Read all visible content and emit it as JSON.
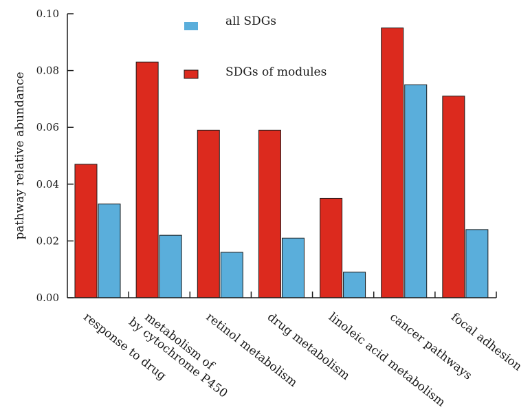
{
  "chart_data": {
    "type": "bar",
    "title": "",
    "xlabel": "",
    "ylabel": "pathway relative abundance",
    "ylim": [
      0,
      0.1
    ],
    "yticks": [
      "0.00",
      "0.02",
      "0.04",
      "0.06",
      "0.08",
      "0.10"
    ],
    "grid": false,
    "legend_position": "top-center",
    "categories": [
      [
        "response to drug"
      ],
      [
        "metabolism of",
        "by cytochrome P450"
      ],
      [
        "retinol metabolism"
      ],
      [
        "drug metabolism"
      ],
      [
        "linoleic acid metabolism"
      ],
      [
        "cancer pathways"
      ],
      [
        "focal adhesion"
      ]
    ],
    "series": [
      {
        "name": "SDGs of modules",
        "color": "#dc2a1e",
        "values": [
          0.047,
          0.083,
          0.059,
          0.059,
          0.035,
          0.095,
          0.071
        ]
      },
      {
        "name": "all SDGs",
        "color": "#5aaedb",
        "values": [
          0.033,
          0.022,
          0.016,
          0.021,
          0.009,
          0.075,
          0.024
        ]
      }
    ],
    "legend_order": [
      1,
      0
    ]
  }
}
